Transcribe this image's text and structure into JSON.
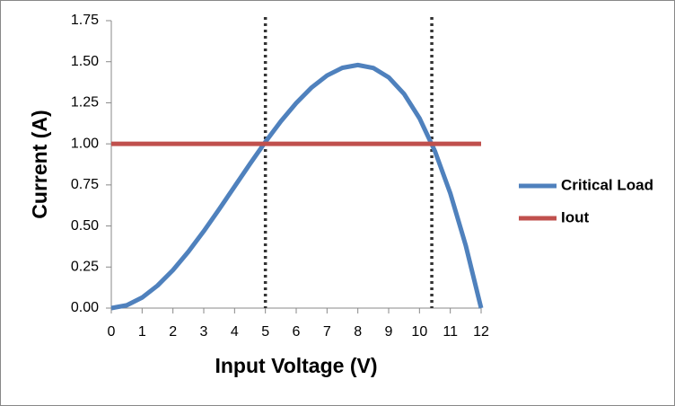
{
  "chart_data": {
    "type": "line",
    "x_label": "Input Voltage (V)",
    "y_label": "Current   (A)",
    "xlim": [
      0,
      12
    ],
    "xticks": [
      0,
      1,
      2,
      3,
      4,
      5,
      6,
      7,
      8,
      9,
      10,
      11,
      12
    ],
    "ylim": [
      0,
      1.75
    ],
    "yticks": [
      {
        "value": 0,
        "label": "0.00"
      },
      0.25,
      {
        "value": 0.5,
        "label": "0.50"
      },
      0.75,
      {
        "value": 1,
        "label": "1.00"
      },
      1.25,
      {
        "value": 1.5,
        "label": "1.50"
      },
      1.75
    ],
    "vlines": [
      5,
      10.4
    ],
    "series": [
      {
        "name": "Critical Load",
        "color": "#4f81bd",
        "x": [
          0,
          0.5,
          1,
          1.5,
          2,
          2.5,
          3,
          3.5,
          4,
          4.5,
          5,
          5.5,
          6,
          6.5,
          7,
          7.5,
          8,
          8.5,
          9,
          9.5,
          10,
          10.5,
          11,
          11.5,
          12
        ],
        "values": [
          0,
          0.017,
          0.064,
          0.137,
          0.231,
          0.343,
          0.468,
          0.602,
          0.74,
          0.878,
          1.012,
          1.137,
          1.248,
          1.343,
          1.416,
          1.463,
          1.48,
          1.462,
          1.405,
          1.304,
          1.156,
          0.956,
          0.699,
          0.382,
          0
        ]
      },
      {
        "name": "Iout",
        "color": "#c0504d",
        "x": [
          0,
          12
        ],
        "values": [
          1,
          1
        ]
      }
    ]
  }
}
